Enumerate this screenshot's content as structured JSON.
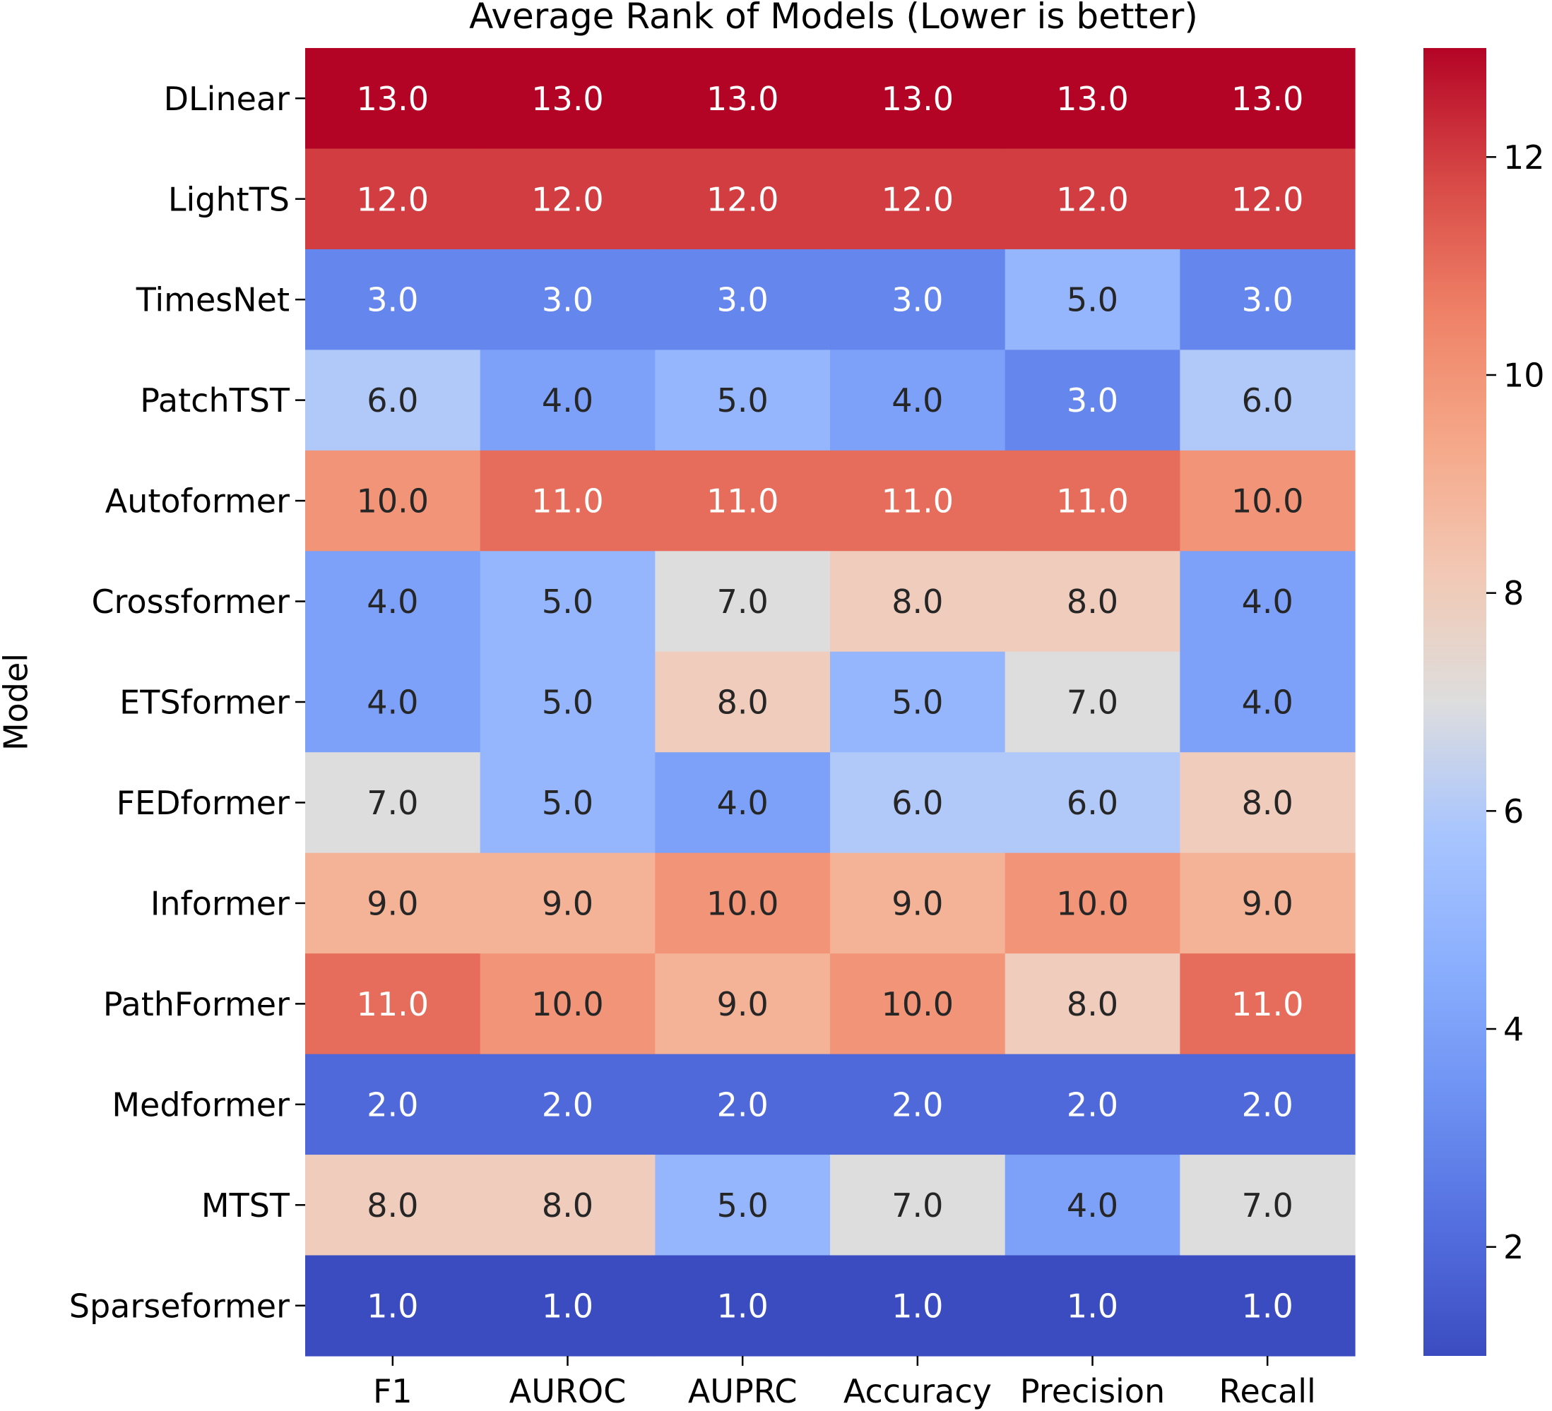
{
  "chart_data": {
    "type": "heatmap",
    "title": "Average Rank of Models (Lower is better)",
    "xlabel": "",
    "ylabel": "Model",
    "columns": [
      "F1",
      "AUROC",
      "AUPRC",
      "Accuracy",
      "Precision",
      "Recall"
    ],
    "rows": [
      "DLinear",
      "LightTS",
      "TimesNet",
      "PatchTST",
      "Autoformer",
      "Crossformer",
      "ETSformer",
      "FEDformer",
      "Informer",
      "PathFormer",
      "Medformer",
      "MTST",
      "Sparseformer"
    ],
    "values": [
      [
        13.0,
        13.0,
        13.0,
        13.0,
        13.0,
        13.0
      ],
      [
        12.0,
        12.0,
        12.0,
        12.0,
        12.0,
        12.0
      ],
      [
        3.0,
        3.0,
        3.0,
        3.0,
        5.0,
        3.0
      ],
      [
        6.0,
        4.0,
        5.0,
        4.0,
        3.0,
        6.0
      ],
      [
        10.0,
        11.0,
        11.0,
        11.0,
        11.0,
        10.0
      ],
      [
        4.0,
        5.0,
        7.0,
        8.0,
        8.0,
        4.0
      ],
      [
        4.0,
        5.0,
        8.0,
        5.0,
        7.0,
        4.0
      ],
      [
        7.0,
        5.0,
        4.0,
        6.0,
        6.0,
        8.0
      ],
      [
        9.0,
        9.0,
        10.0,
        9.0,
        10.0,
        9.0
      ],
      [
        11.0,
        10.0,
        9.0,
        10.0,
        8.0,
        11.0
      ],
      [
        2.0,
        2.0,
        2.0,
        2.0,
        2.0,
        2.0
      ],
      [
        8.0,
        8.0,
        5.0,
        7.0,
        4.0,
        7.0
      ],
      [
        1.0,
        1.0,
        1.0,
        1.0,
        1.0,
        1.0
      ]
    ],
    "annotations": [
      [
        "13.0",
        "13.0",
        "13.0",
        "13.0",
        "13.0",
        "13.0"
      ],
      [
        "12.0",
        "12.0",
        "12.0",
        "12.0",
        "12.0",
        "12.0"
      ],
      [
        "3.0",
        "3.0",
        "3.0",
        "3.0",
        "5.0",
        "3.0"
      ],
      [
        "6.0",
        "4.0",
        "5.0",
        "4.0",
        "3.0",
        "6.0"
      ],
      [
        "10.0",
        "11.0",
        "11.0",
        "11.0",
        "11.0",
        "10.0"
      ],
      [
        "4.0",
        "5.0",
        "7.0",
        "8.0",
        "8.0",
        "4.0"
      ],
      [
        "4.0",
        "5.0",
        "8.0",
        "5.0",
        "7.0",
        "4.0"
      ],
      [
        "7.0",
        "5.0",
        "4.0",
        "6.0",
        "6.0",
        "8.0"
      ],
      [
        "9.0",
        "9.0",
        "10.0",
        "9.0",
        "10.0",
        "9.0"
      ],
      [
        "11.0",
        "10.0",
        "9.0",
        "10.0",
        "8.0",
        "11.0"
      ],
      [
        "2.0",
        "2.0",
        "2.0",
        "2.0",
        "2.0",
        "2.0"
      ],
      [
        "8.0",
        "8.0",
        "5.0",
        "7.0",
        "4.0",
        "7.0"
      ],
      [
        "1.0",
        "1.0",
        "1.0",
        "1.0",
        "1.0",
        "1.0"
      ]
    ],
    "colormap": "coolwarm",
    "colorbar": {
      "range": [
        1,
        13
      ],
      "ticks": [
        2,
        4,
        6,
        8,
        10,
        12
      ],
      "tick_labels": [
        "2",
        "4",
        "6",
        "8",
        "10",
        "12"
      ]
    },
    "colors": {
      "low": "#3b4cc0",
      "mid": "#dddddd",
      "high": "#b40426",
      "text_dark": "#262626",
      "text_light": "#ffffff"
    },
    "grid": false
  }
}
